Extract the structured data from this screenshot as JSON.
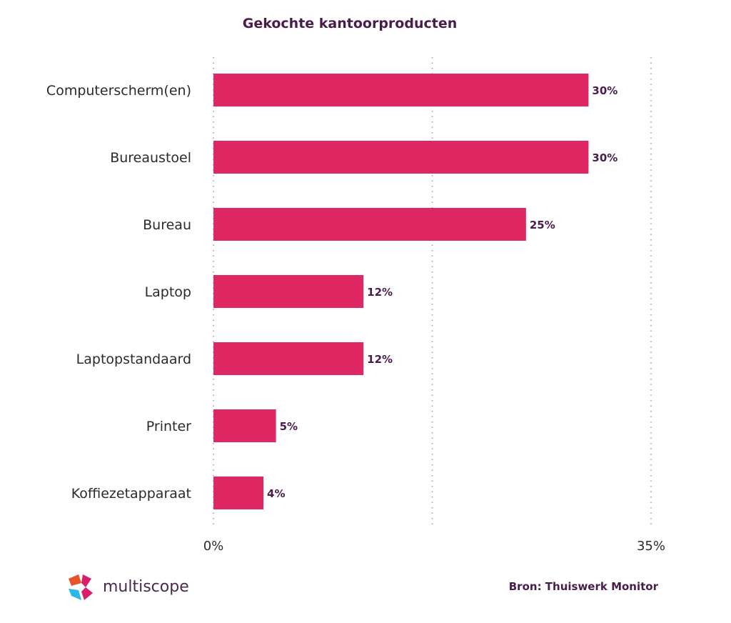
{
  "chart_data": {
    "type": "bar",
    "orientation": "horizontal",
    "title": "Gekochte kantoorproducten",
    "categories": [
      "Computerscherm(en)",
      "Bureaustoel",
      "Bureau",
      "Laptop",
      "Laptopstandaard",
      "Printer",
      "Koffiezetapparaat"
    ],
    "values": [
      30,
      30,
      25,
      12,
      12,
      5,
      4
    ],
    "value_labels": [
      "30%",
      "30%",
      "25%",
      "12%",
      "12%",
      "5%",
      "4%"
    ],
    "xlim": [
      0,
      35
    ],
    "x_ticks": [
      {
        "value": 0,
        "label": "0%"
      },
      {
        "value": 17.5,
        "label": ""
      },
      {
        "value": 35,
        "label": "35%"
      }
    ],
    "grid": true,
    "bar_color": "#de2763"
  },
  "footer": {
    "source": "Bron: Thuiswerk Monitor",
    "logo_text": "multiscope"
  }
}
